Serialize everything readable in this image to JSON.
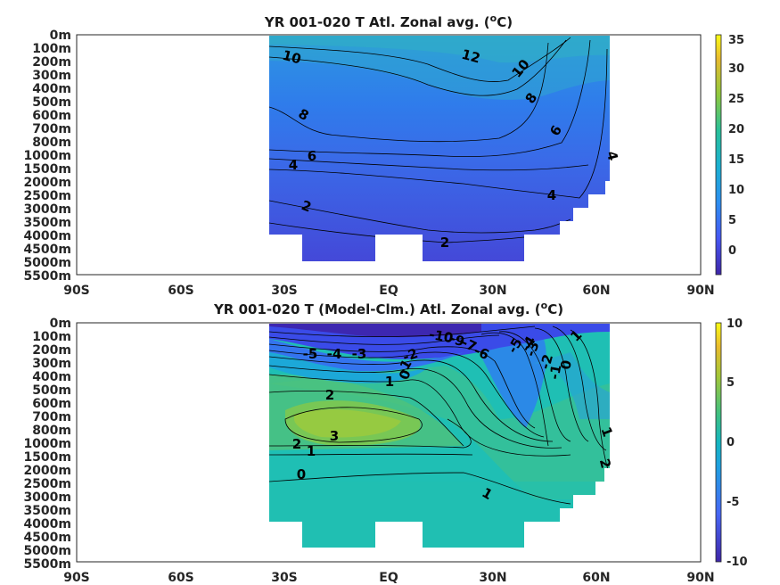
{
  "chart_data": [
    {
      "type": "heatmap",
      "title": "YR 001-020 T Atl. Zonal avg. (°C)",
      "title_parts": {
        "prefix": "YR 001-020 T Atl. Zonal avg. (",
        "sup": "o",
        "suffix": "C)"
      },
      "x_tick_labels": [
        "90S",
        "60S",
        "30S",
        "EQ",
        "30N",
        "60N",
        "90N"
      ],
      "y_tick_labels": [
        "0m",
        "100m",
        "200m",
        "300m",
        "400m",
        "500m",
        "600m",
        "700m",
        "800m",
        "1000m",
        "1500m",
        "2000m",
        "2500m",
        "3000m",
        "3500m",
        "4000m",
        "4500m",
        "5000m",
        "5500m"
      ],
      "xlim": [
        -90,
        90
      ],
      "colorbar": {
        "range": [
          -3.5,
          36
        ],
        "ticks": [
          "0",
          "5",
          "10",
          "15",
          "20",
          "25",
          "30",
          "35"
        ],
        "tick_values": [
          0,
          5,
          10,
          15,
          20,
          25,
          30,
          35
        ]
      },
      "contour_labels": [
        "12",
        "10",
        "10",
        "8",
        "8",
        "6",
        "6",
        "4",
        "4",
        "4",
        "2",
        "2"
      ]
    },
    {
      "type": "heatmap",
      "title": "YR 001-020 T (Model-Clm.) Atl. Zonal avg. (°C)",
      "title_parts": {
        "prefix": "YR 001-020 T (Model-Clm.) Atl. Zonal avg. (",
        "sup": "o",
        "suffix": "C)"
      },
      "x_tick_labels": [
        "90S",
        "60S",
        "30S",
        "EQ",
        "30N",
        "60N",
        "90N"
      ],
      "y_tick_labels": [
        "0m",
        "100m",
        "200m",
        "300m",
        "400m",
        "500m",
        "600m",
        "700m",
        "800m",
        "1000m",
        "1500m",
        "2000m",
        "2500m",
        "3000m",
        "3500m",
        "4000m",
        "4500m",
        "5000m",
        "5500m"
      ],
      "xlim": [
        -90,
        90
      ],
      "colorbar": {
        "range": [
          -10,
          10
        ],
        "ticks": [
          "-10",
          "-5",
          "0",
          "5",
          "10"
        ],
        "tick_values": [
          -10,
          -5,
          0,
          5,
          10
        ]
      },
      "contour_labels": [
        "-5",
        "-4",
        "-3",
        "-2",
        "-1",
        "0",
        "1",
        "2",
        "3",
        "2",
        "1",
        "0",
        "-10",
        "-9",
        "-7",
        "-6",
        "-5",
        "-4",
        "-3",
        "-2",
        "-1",
        "0",
        "1",
        "1",
        "2",
        "1"
      ]
    }
  ]
}
